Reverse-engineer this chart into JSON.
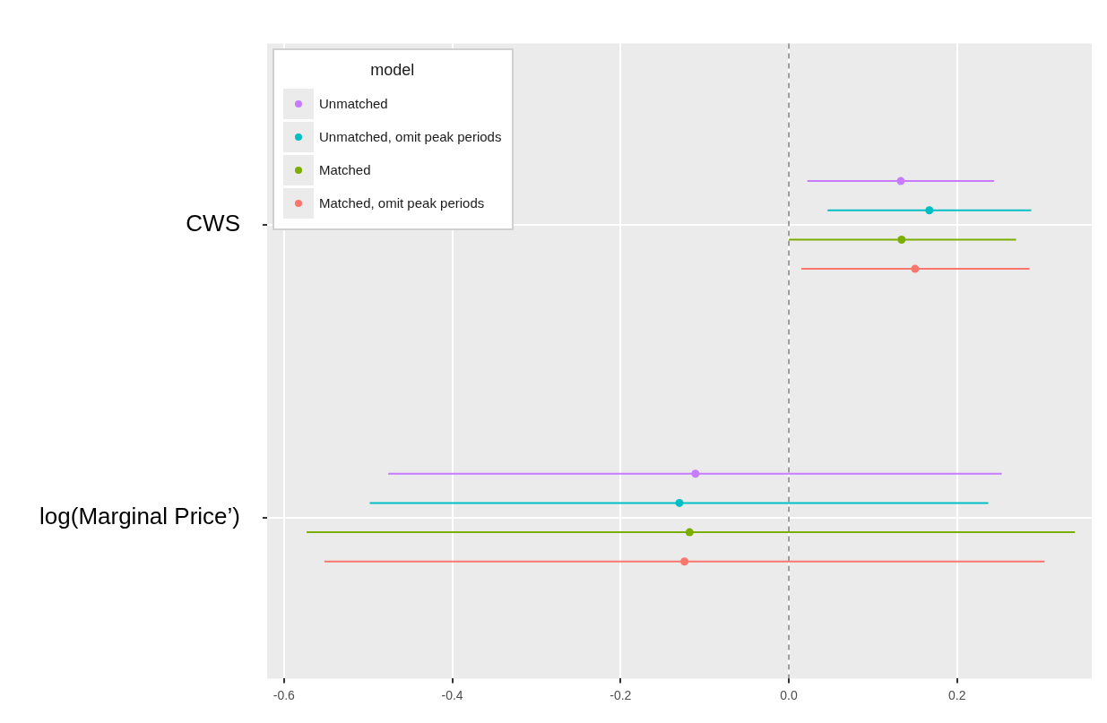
{
  "chart_data": {
    "type": "scatter",
    "orientation": "horizontal",
    "categories": [
      "CWS",
      "log(Marginal Price’)"
    ],
    "series": [
      {
        "name": "Unmatched",
        "color": "#c77cff",
        "values": [
          0.133,
          -0.111
        ],
        "errors": [
          [
            0.022,
            0.244
          ],
          [
            -0.476,
            0.253
          ]
        ]
      },
      {
        "name": "Unmatched, omit peak periods",
        "color": "#00bfc4",
        "values": [
          0.167,
          -0.13
        ],
        "errors": [
          [
            0.046,
            0.288
          ],
          [
            -0.498,
            0.237
          ]
        ]
      },
      {
        "name": "Matched",
        "color": "#7cae00",
        "values": [
          0.134,
          -0.118
        ],
        "errors": [
          [
            0.0,
            0.27
          ],
          [
            -0.573,
            0.34
          ]
        ]
      },
      {
        "name": "Matched, omit peak periods",
        "color": "#f8766d",
        "values": [
          0.15,
          -0.124
        ],
        "errors": [
          [
            0.015,
            0.286
          ],
          [
            -0.552,
            0.304
          ]
        ]
      }
    ],
    "xlim": [
      -0.62,
      0.36
    ],
    "xticks": [
      -0.6,
      -0.4,
      -0.2,
      {
        "value": 0,
        "label": "0.0"
      },
      0.2
    ],
    "ref_lines": [
      {
        "axis": "x",
        "value": 0,
        "color": "#808080",
        "line_style": "dashed"
      }
    ],
    "legend": "top left",
    "legend_title": "model",
    "marker": "circle",
    "grid": true
  }
}
